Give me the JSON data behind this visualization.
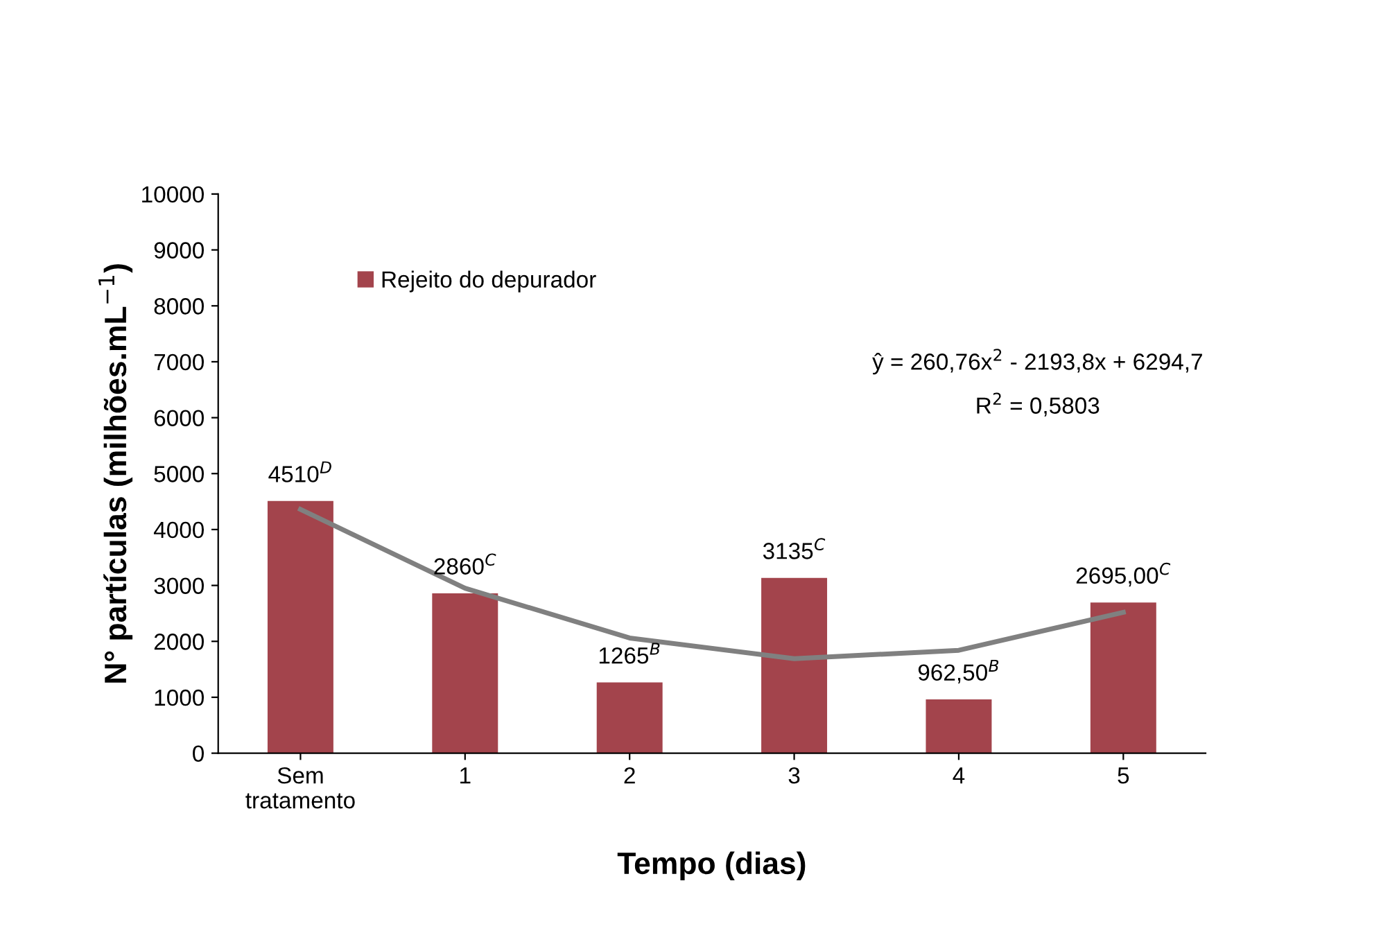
{
  "chart_data": {
    "type": "bar",
    "xlabel": "Tempo (dias)",
    "ylabel": "N° partículas (milhões.mL$^{−1}$)",
    "categories": [
      "Sem\ntratamento",
      "1",
      "2",
      "3",
      "4",
      "5"
    ],
    "series": [
      {
        "name": "Rejeito do depurador",
        "color": "#a3444c",
        "values": [
          4510,
          2860,
          1265,
          3135,
          962.5,
          2695
        ],
        "value_labels": [
          "4510$^{D}$",
          "2860$^{C}$",
          "1265$^{B}$",
          "3135$^{C}$",
          "962,50$^{B}$",
          "2695,00$^{C}$"
        ]
      },
      {
        "type": "line",
        "color": "#808080",
        "values": [
          4360,
          2950,
          2060,
          1690,
          1840,
          2520
        ]
      }
    ],
    "ylim": [
      0,
      10000
    ],
    "yticks": [
      0,
      1000,
      2000,
      3000,
      4000,
      5000,
      6000,
      7000,
      8000,
      9000,
      10000
    ],
    "grid": false,
    "legend": "top left",
    "annotations": [
      "ŷ = 260,76x$^{2}$ - 2193,8x + 6294,7",
      "R$^{2}$ = 0,5803"
    ]
  }
}
